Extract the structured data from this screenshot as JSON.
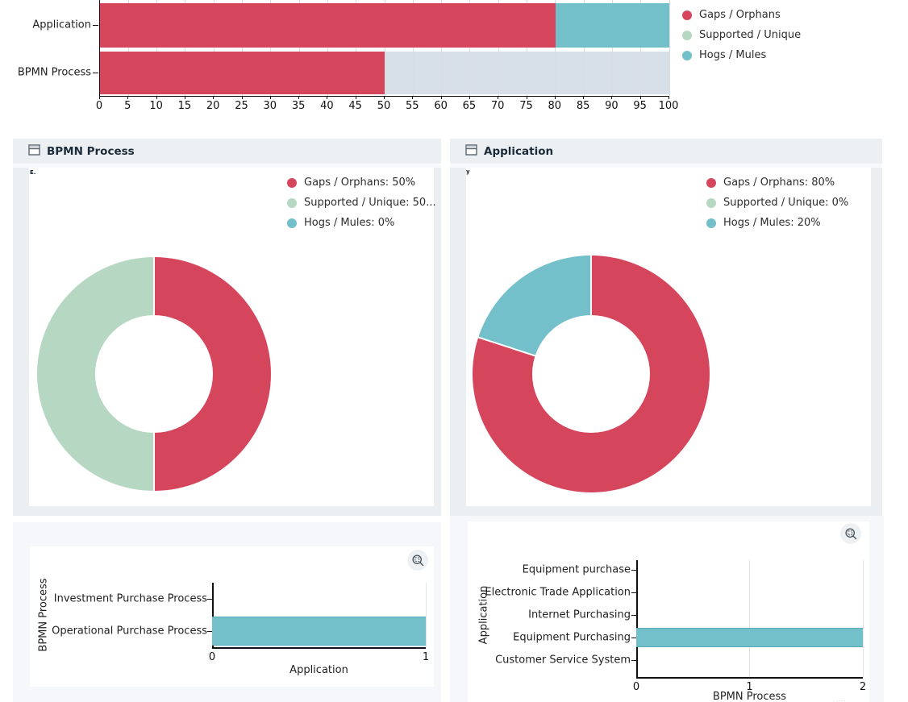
{
  "ui": {
    "panel_headers": [
      {
        "icon": "window-icon",
        "title": "BPMN Process"
      },
      {
        "icon": "window-icon",
        "title": "Application"
      }
    ],
    "zoom_button_icon": "box-zoom-icon",
    "artifacts": {
      "left_card_mark": "E.",
      "right_card_mark": "y",
      "bottom_right_mark": "....."
    },
    "colors": {
      "gaps_orphans": "#D5465C",
      "supported_unique": "#B6D8C3",
      "hogs_mules": "#73BFCA",
      "pale_segment": "#D7E0E8",
      "panel_header_bg": "#EDF0F3",
      "panel_gutter_bg": "#ECEFF1",
      "card_region_bg": "#F5F7FA"
    }
  },
  "chart_data": [
    {
      "id": "overview_stacked_bar",
      "type": "bar",
      "orientation": "horizontal",
      "stacked": true,
      "categories": [
        "Application",
        "BPMN Process"
      ],
      "series": [
        {
          "name": "Gaps / Orphans",
          "color": "#D5465C",
          "values": [
            80,
            50
          ]
        },
        {
          "name": "Supported / Unique",
          "color": "#B6D8C3",
          "values": [
            0,
            50
          ]
        },
        {
          "name": "Hogs / Mules",
          "color": "#73BFCA",
          "values": [
            20,
            0
          ]
        }
      ],
      "bars": [
        {
          "category": "Application",
          "segments": [
            {
              "series": "Gaps / Orphans",
              "value": 80,
              "color": "#D5465C"
            },
            {
              "series": "Hogs / Mules",
              "value": 20,
              "color": "#73BFCA"
            }
          ]
        },
        {
          "category": "BPMN Process",
          "segments": [
            {
              "series": "Gaps / Orphans",
              "value": 50,
              "color": "#D5465C"
            },
            {
              "series": "Supported / Unique",
              "value": 50,
              "color": "#D7E0E8"
            }
          ]
        }
      ],
      "xlim": [
        0,
        100
      ],
      "xticks": [
        0,
        5,
        10,
        15,
        20,
        25,
        30,
        35,
        40,
        45,
        50,
        55,
        60,
        65,
        70,
        75,
        80,
        85,
        90,
        95,
        100
      ],
      "grid": true,
      "legend_position": "right",
      "legend": [
        {
          "label": "Gaps / Orphans",
          "color": "#D5465C"
        },
        {
          "label": "Supported / Unique",
          "color": "#B6D8C3"
        },
        {
          "label": "Hogs / Mules",
          "color": "#73BFCA"
        }
      ]
    },
    {
      "id": "donut_bpmn_process",
      "type": "pie",
      "donut": true,
      "title": "BPMN Process",
      "legend_position": "top-right",
      "slices": [
        {
          "label": "Gaps / Orphans",
          "value": 50,
          "color": "#D5465C",
          "legend": "Gaps / Orphans: 50%"
        },
        {
          "label": "Supported / Unique",
          "value": 50,
          "color": "#B6D8C3",
          "legend": "Supported / Unique: 50..."
        },
        {
          "label": "Hogs / Mules",
          "value": 0,
          "color": "#73BFCA",
          "legend": "Hogs / Mules: 0%"
        }
      ]
    },
    {
      "id": "donut_application",
      "type": "pie",
      "donut": true,
      "title": "Application",
      "legend_position": "top-right",
      "slices": [
        {
          "label": "Gaps / Orphans",
          "value": 80,
          "color": "#D5465C",
          "legend": "Gaps / Orphans: 80%"
        },
        {
          "label": "Supported / Unique",
          "value": 0,
          "color": "#B6D8C3",
          "legend": "Supported / Unique: 0%"
        },
        {
          "label": "Hogs / Mules",
          "value": 20,
          "color": "#73BFCA",
          "legend": "Hogs / Mules: 20%"
        }
      ]
    },
    {
      "id": "bpmn_process_detail",
      "type": "bar",
      "orientation": "horizontal",
      "categories": [
        "Investment Purchase Process",
        "Operational Purchase Process"
      ],
      "values": [
        0,
        1
      ],
      "bar_color": "#73BFCA",
      "xlabel": "Application",
      "ylabel": "BPMN Process",
      "xlim": [
        0,
        1
      ],
      "xticks": [
        0,
        1
      ],
      "grid": true
    },
    {
      "id": "application_detail",
      "type": "bar",
      "orientation": "horizontal",
      "categories": [
        "Equipment purchase",
        "Electronic Trade Application",
        "Internet Purchasing",
        "Equipment Purchasing",
        "Customer Service System"
      ],
      "values": [
        0,
        0,
        0,
        2,
        0
      ],
      "bar_color": "#73BFCA",
      "xlabel": "BPMN Process",
      "ylabel": "Application",
      "xlim": [
        0,
        2
      ],
      "xticks": [
        0,
        1,
        2
      ],
      "grid": true
    }
  ]
}
